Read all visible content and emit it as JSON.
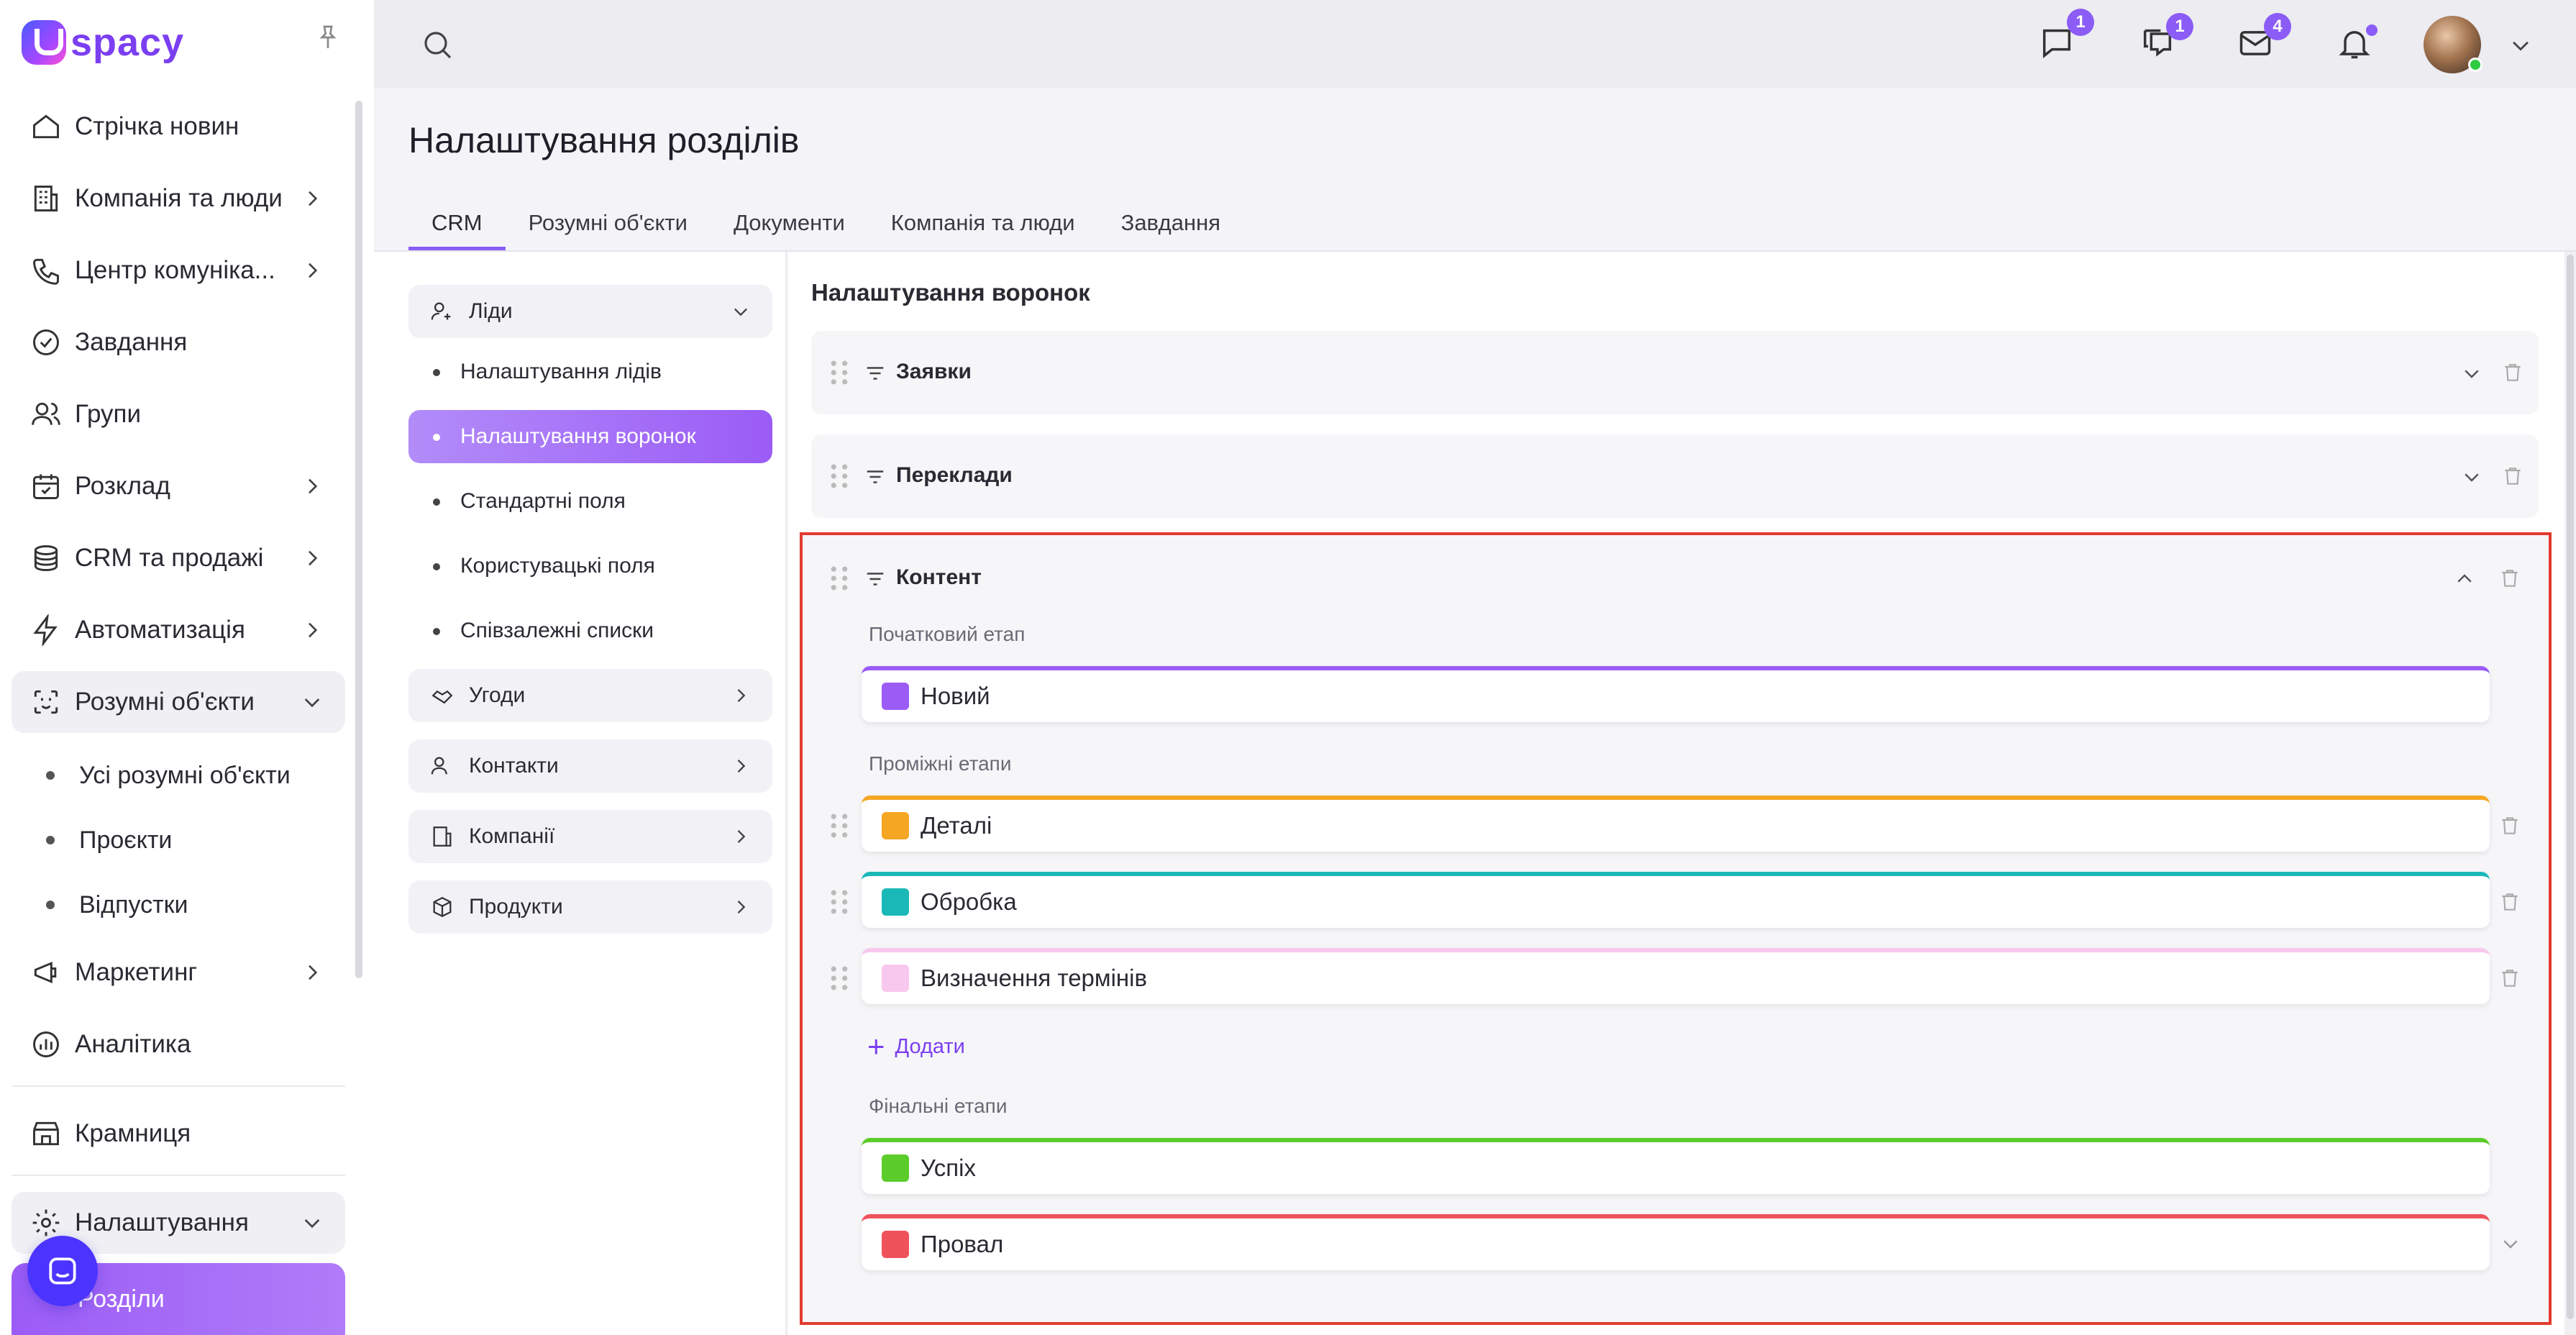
{
  "logo": {
    "text": "spacy"
  },
  "sidebar": {
    "items": [
      {
        "label": "Стрічка новин"
      },
      {
        "label": "Компанія та люди"
      },
      {
        "label": "Центр комуніка..."
      },
      {
        "label": "Завдання"
      },
      {
        "label": "Групи"
      },
      {
        "label": "Розклад"
      },
      {
        "label": "CRM та продажі"
      },
      {
        "label": "Автоматизація"
      },
      {
        "label": "Розумні об'єкти"
      }
    ],
    "smart_sub": [
      {
        "label": "Усі розумні об'єкти"
      },
      {
        "label": "Проєкти"
      },
      {
        "label": "Відпустки"
      }
    ],
    "after": [
      {
        "label": "Маркетинг"
      },
      {
        "label": "Аналітика"
      }
    ],
    "store": "Крамниця",
    "settings": "Налаштування",
    "sections": "Розділи"
  },
  "topbar": {
    "badges": {
      "chat": "1",
      "comments": "1",
      "mail": "4"
    },
    "accent": "#8b5cf6"
  },
  "page": {
    "title": "Налаштування розділів",
    "tabs": [
      {
        "label": "CRM"
      },
      {
        "label": "Розумні об'єкти"
      },
      {
        "label": "Документи"
      },
      {
        "label": "Компанія та люди"
      },
      {
        "label": "Завдання"
      }
    ]
  },
  "crm_menu": {
    "leads": "Ліди",
    "leads_sub": [
      {
        "label": "Налаштування лідів"
      },
      {
        "label": "Налаштування воронок"
      },
      {
        "label": "Стандартні поля"
      },
      {
        "label": "Користувацькі поля"
      },
      {
        "label": "Співзалежні списки"
      }
    ],
    "deals": "Угоди",
    "contacts": "Контакти",
    "companies": "Компанії",
    "products": "Продукти"
  },
  "main": {
    "title": "Налаштування воронок",
    "funnels": [
      {
        "name": "Заявки"
      },
      {
        "name": "Переклади"
      },
      {
        "name": "Контент"
      }
    ],
    "initial_label": "Початковий етап",
    "middle_label": "Проміжні етапи",
    "final_label": "Фінальні етапи",
    "add_label": "Додати",
    "stages": {
      "initial": {
        "name": "Новий",
        "color": "#9b5cf6"
      },
      "middle": [
        {
          "name": "Деталі",
          "color": "#f5a623"
        },
        {
          "name": "Обробка",
          "color": "#1bb8b8"
        },
        {
          "name": "Визначення термінів",
          "color": "#f8c8ee"
        }
      ],
      "final": [
        {
          "name": "Успіх",
          "color": "#5bcc2a"
        },
        {
          "name": "Провал",
          "color": "#f0525c"
        }
      ]
    }
  }
}
